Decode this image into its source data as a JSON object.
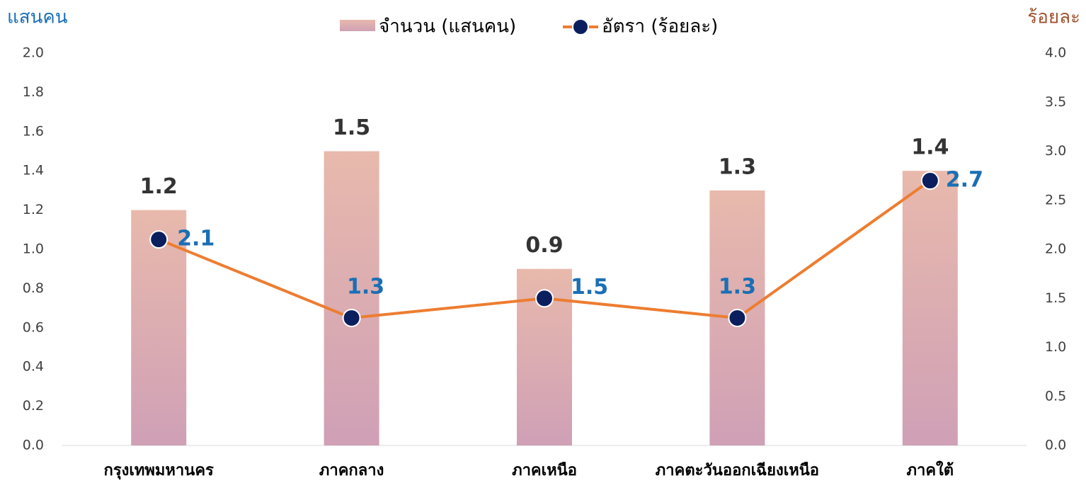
{
  "chart_data": {
    "type": "bar",
    "y_label": "แสนคน",
    "y2_label": "ร้อยละ",
    "categories": [
      "กรุงเทพมหานคร",
      "ภาคกลาง",
      "ภาคเหนือ",
      "ภาคตะวันออกเฉียงเหนือ",
      "ภาคใต้"
    ],
    "series": [
      {
        "name": "จำนวน (แสนคน)",
        "type": "bar",
        "color": "#e8b9ac",
        "color_bottom": "#cfa0b6",
        "values": [
          1.2,
          1.5,
          0.9,
          1.3,
          1.4
        ]
      },
      {
        "name": "อัตรา (ร้อยละ)",
        "type": "line",
        "axis": "y2",
        "color": "#ed7d31",
        "marker_color": "#0b1f5e",
        "values": [
          2.1,
          1.3,
          1.5,
          1.3,
          2.7
        ]
      }
    ],
    "ylim": [
      0,
      2
    ],
    "yticks": [
      {
        "value": 0,
        "label": "0.0"
      },
      0.2,
      0.4,
      0.6,
      0.8,
      {
        "value": 1,
        "label": "1.0"
      },
      1.2,
      1.4,
      1.6,
      1.8,
      {
        "value": 2,
        "label": "2.0"
      }
    ],
    "y2lim": [
      0,
      4
    ],
    "y2ticks": [
      {
        "value": 0,
        "label": "0.0"
      },
      0.5,
      {
        "value": 1,
        "label": "1.0"
      },
      1.5,
      {
        "value": 2,
        "label": "2.0"
      },
      2.5,
      {
        "value": 3,
        "label": "3.0"
      },
      3.5,
      {
        "value": 4,
        "label": "4.0"
      }
    ],
    "legend": "top"
  }
}
